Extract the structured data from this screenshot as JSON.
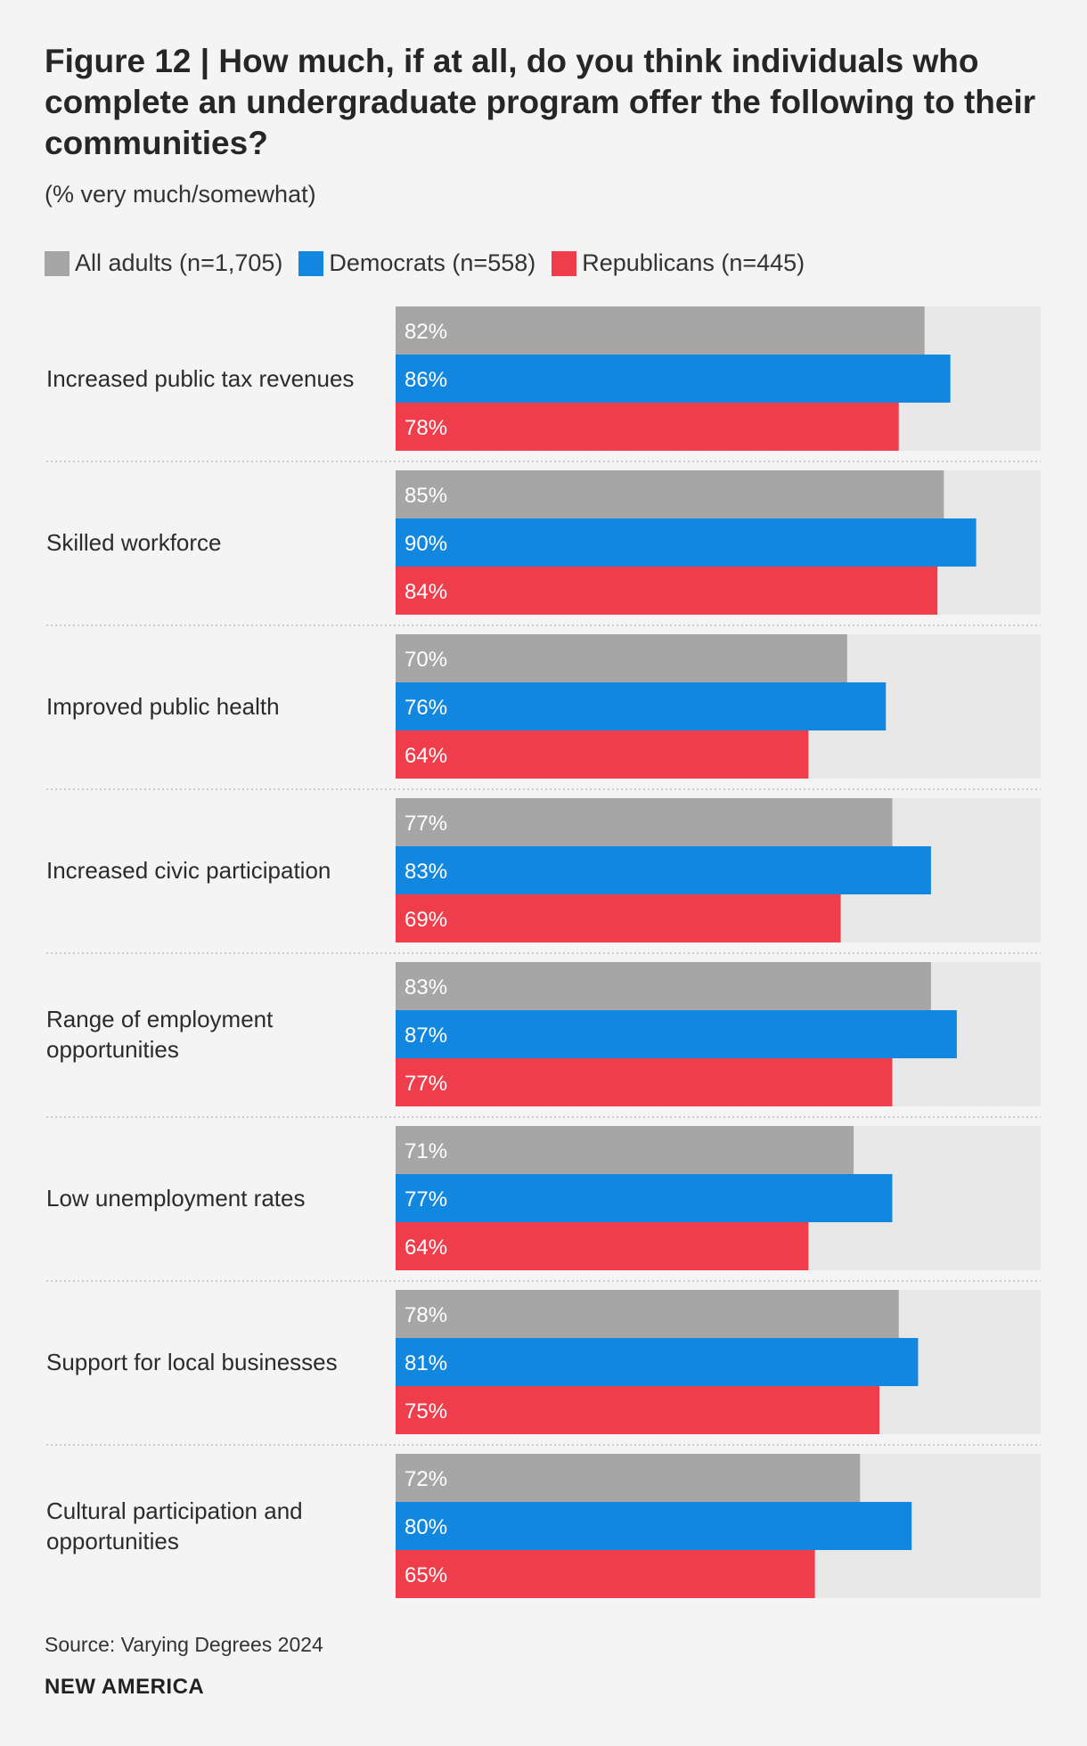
{
  "header": {
    "title": "Figure 12 | How much, if at all, do you think individuals who complete an undergraduate program offer the following to their communities?",
    "subtitle": "(% very much/somewhat)"
  },
  "footer": {
    "source": "Source: Varying Degrees 2024",
    "brand": "NEW AMERICA"
  },
  "colors": {
    "all_adults": "#a6a6a6",
    "democrats": "#1287e0",
    "republicans": "#f03d4b",
    "track": "#e8e8e8",
    "divider": "#bdbdbd"
  },
  "chart_data": {
    "type": "bar",
    "orientation": "horizontal",
    "title": "Figure 12 | How much, if at all, do you think individuals who complete an undergraduate program offer the following to their communities?",
    "subtitle": "(% very much/somewhat)",
    "xlim": [
      0,
      100
    ],
    "value_suffix": "%",
    "categories": [
      [
        "Increased public tax revenues"
      ],
      [
        "Skilled workforce"
      ],
      [
        "Improved public health"
      ],
      [
        "Increased civic participation"
      ],
      [
        "Range of employment",
        "opportunities"
      ],
      [
        "Low unemployment rates"
      ],
      [
        "Support for local businesses"
      ],
      [
        "Cultural participation and",
        "opportunities"
      ]
    ],
    "series": [
      {
        "name": "All adults (n=1,705)",
        "color": "#a6a6a6",
        "values": [
          82,
          85,
          70,
          77,
          83,
          71,
          78,
          72
        ]
      },
      {
        "name": "Democrats (n=558)",
        "color": "#1287e0",
        "values": [
          86,
          90,
          76,
          83,
          87,
          77,
          81,
          80
        ]
      },
      {
        "name": "Republicans (n=445)",
        "color": "#f03d4b",
        "values": [
          78,
          84,
          64,
          69,
          77,
          64,
          75,
          65
        ]
      }
    ]
  }
}
